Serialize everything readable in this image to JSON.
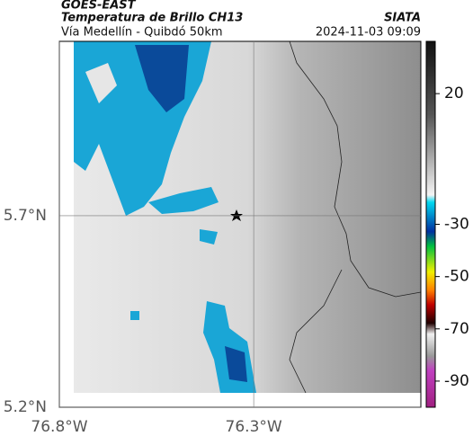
{
  "header": {
    "source": "GOES-EAST",
    "product": "Temperatura de Brillo CH13",
    "region": "Vía Medellín - Quibdó 50km",
    "agency": "SIATA",
    "timestamp": "2024-11-03 09:09"
  },
  "map": {
    "xlim": [
      -76.8,
      -75.87
    ],
    "ylim": [
      5.2,
      6.155
    ],
    "xticks": [
      {
        "value": -76.8,
        "label": "76.8°W"
      },
      {
        "value": -76.3,
        "label": "76.3°W"
      }
    ],
    "yticks": [
      {
        "value": 5.2,
        "label": "5.2°N"
      },
      {
        "value": 5.7,
        "label": "5.7°N"
      }
    ]
  },
  "colorbar": {
    "lim": [
      -100,
      40
    ],
    "ticks": [
      20,
      -30,
      -50,
      -70,
      -90
    ]
  }
}
